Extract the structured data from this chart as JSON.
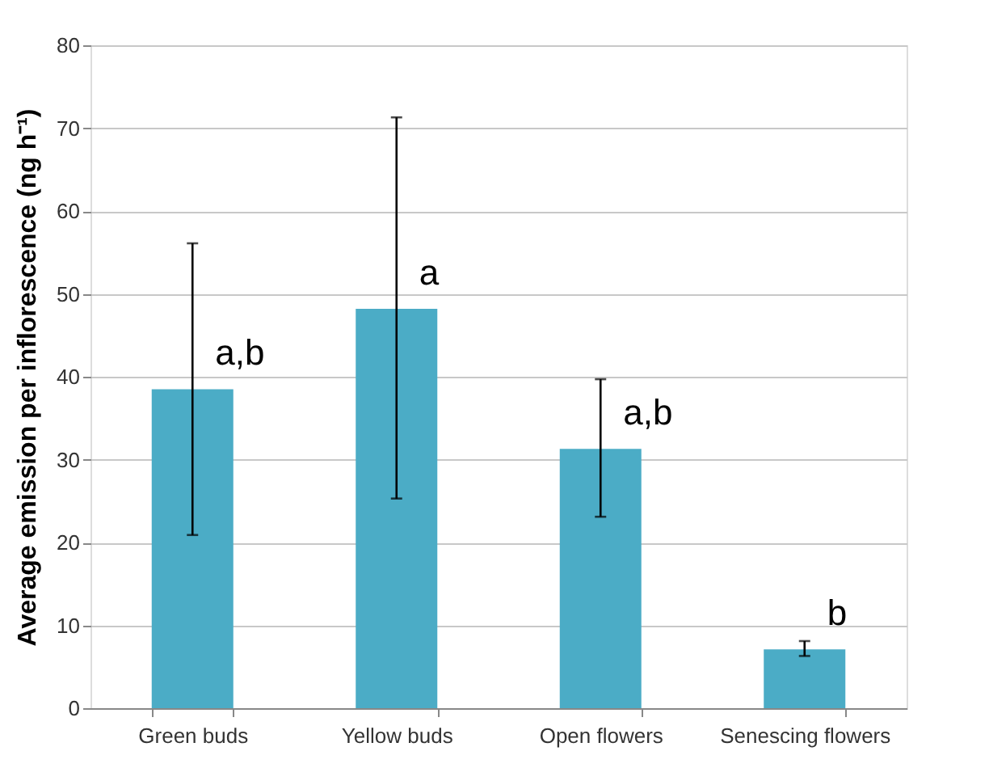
{
  "chart_data": {
    "type": "bar",
    "ylabel": "Average emission per inflorescence (ng h⁻¹)",
    "categories": [
      "Green buds",
      "Yellow buds",
      "Open flowers",
      "Senescing flowers"
    ],
    "values": [
      38.5,
      48.2,
      31.3,
      7.1
    ],
    "color": "#4bacc6",
    "errors": [
      [
        20.9,
        56.1
      ],
      [
        25.3,
        71.3
      ],
      [
        23.1,
        39.7
      ],
      [
        6.3,
        8.1
      ]
    ],
    "ylim": [
      0,
      80
    ],
    "yticks": [
      0,
      10,
      20,
      30,
      40,
      50,
      60,
      70,
      80
    ],
    "grid": "y",
    "annotations": [
      {
        "text": "a,b",
        "x": "Green buds",
        "y": 38.5
      },
      {
        "text": "a",
        "x": "Yellow buds",
        "y": 48.2
      },
      {
        "text": "a,b",
        "x": "Open flowers",
        "y": 31.3
      },
      {
        "text": "b",
        "x": "Senescing flowers",
        "y": 7.1
      }
    ]
  }
}
